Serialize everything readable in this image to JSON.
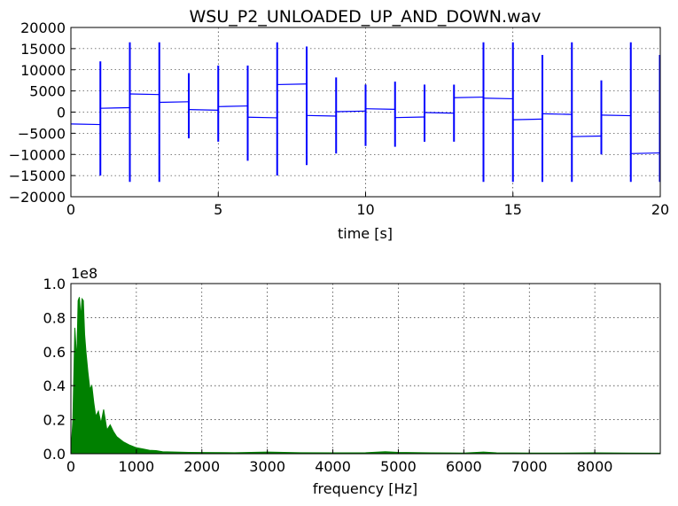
{
  "chart_data": [
    {
      "type": "line",
      "title": "WSU_P2_UNLOADED_UP_AND_DOWN.wav",
      "xlabel": "time [s]",
      "ylabel": "",
      "xlim": [
        0,
        20
      ],
      "ylim": [
        -20000,
        20000
      ],
      "xticks": [
        "0",
        "5",
        "10",
        "15",
        "20"
      ],
      "yticks": [
        "20000",
        "15000",
        "10000",
        "5000",
        "0",
        "−5000",
        "−10000",
        "−15000",
        "−20000"
      ],
      "grid": true,
      "color": "#0000ff",
      "segments": [
        {
          "t0": 0.0,
          "t1": 1.0,
          "level": -2800
        },
        {
          "t0": 1.0,
          "t1": 2.0,
          "level": 900
        },
        {
          "t0": 2.0,
          "t1": 3.0,
          "level": 4300
        },
        {
          "t0": 3.0,
          "t1": 4.0,
          "level": 2300
        },
        {
          "t0": 4.0,
          "t1": 5.0,
          "level": 600
        },
        {
          "t0": 5.0,
          "t1": 6.0,
          "level": 1300
        },
        {
          "t0": 6.0,
          "t1": 7.0,
          "level": -1200
        },
        {
          "t0": 7.0,
          "t1": 8.0,
          "level": 6500
        },
        {
          "t0": 8.0,
          "t1": 9.0,
          "level": -800
        },
        {
          "t0": 9.0,
          "t1": 10.0,
          "level": 100
        },
        {
          "t0": 10.0,
          "t1": 11.0,
          "level": 800
        },
        {
          "t0": 11.0,
          "t1": 12.0,
          "level": -1300
        },
        {
          "t0": 12.0,
          "t1": 13.0,
          "level": -100
        },
        {
          "t0": 13.0,
          "t1": 14.0,
          "level": 3400
        },
        {
          "t0": 14.0,
          "t1": 15.0,
          "level": 3300
        },
        {
          "t0": 15.0,
          "t1": 16.0,
          "level": -1800
        },
        {
          "t0": 16.0,
          "t1": 17.0,
          "level": -400
        },
        {
          "t0": 17.0,
          "t1": 18.0,
          "level": -5800
        },
        {
          "t0": 18.0,
          "t1": 19.0,
          "level": -700
        },
        {
          "t0": 19.0,
          "t1": 20.0,
          "level": -9800
        }
      ],
      "spikes": [
        {
          "t": 1.0,
          "max": 12000,
          "min": -15000
        },
        {
          "t": 2.0,
          "max": 16500,
          "min": -16500
        },
        {
          "t": 3.0,
          "max": 16500,
          "min": -16500
        },
        {
          "t": 4.0,
          "max": 9200,
          "min": -6200
        },
        {
          "t": 5.0,
          "max": 11000,
          "min": -7000
        },
        {
          "t": 6.0,
          "max": 11000,
          "min": -11500
        },
        {
          "t": 7.0,
          "max": 16500,
          "min": -15000
        },
        {
          "t": 8.0,
          "max": 15500,
          "min": -12500
        },
        {
          "t": 9.0,
          "max": 8200,
          "min": -9800
        },
        {
          "t": 10.0,
          "max": 6500,
          "min": -8000
        },
        {
          "t": 11.0,
          "max": 7200,
          "min": -8200
        },
        {
          "t": 12.0,
          "max": 6500,
          "min": -7000
        },
        {
          "t": 13.0,
          "max": 6500,
          "min": -7000
        },
        {
          "t": 14.0,
          "max": 16500,
          "min": -16500
        },
        {
          "t": 15.0,
          "max": 16500,
          "min": -16500
        },
        {
          "t": 16.0,
          "max": 13500,
          "min": -16500
        },
        {
          "t": 17.0,
          "max": 16500,
          "min": -16500
        },
        {
          "t": 18.0,
          "max": 7500,
          "min": -10000
        },
        {
          "t": 19.0,
          "max": 16500,
          "min": -16500
        },
        {
          "t": 20.0,
          "max": 13500,
          "min": -16500
        }
      ]
    },
    {
      "type": "area",
      "title": "",
      "xlabel": "frequency [Hz]",
      "ylabel": "",
      "xlim": [
        0,
        9000
      ],
      "ylim": [
        0,
        1.0
      ],
      "offset_label": "1e8",
      "xticks": [
        "0",
        "1000",
        "2000",
        "3000",
        "4000",
        "5000",
        "6000",
        "7000",
        "8000"
      ],
      "yticks": [
        "1.0",
        "0.8",
        "0.6",
        "0.4",
        "0.2",
        "0.0"
      ],
      "grid": true,
      "color": "#008000",
      "envelope_x": [
        0,
        30,
        60,
        90,
        110,
        130,
        150,
        170,
        190,
        210,
        230,
        260,
        290,
        320,
        350,
        380,
        420,
        460,
        500,
        550,
        600,
        650,
        700,
        800,
        900,
        1000,
        1100,
        1200,
        1300,
        1400,
        1600,
        1800,
        2000,
        2500,
        3000,
        3500,
        4000,
        4500,
        4800,
        5000,
        5500,
        6000,
        6300,
        6500,
        7000,
        7500,
        8000,
        8500,
        9000
      ],
      "envelope_y": [
        0.0,
        0.2,
        0.74,
        0.55,
        0.9,
        0.92,
        0.8,
        0.91,
        0.9,
        0.7,
        0.6,
        0.48,
        0.38,
        0.4,
        0.3,
        0.22,
        0.25,
        0.18,
        0.26,
        0.14,
        0.17,
        0.13,
        0.1,
        0.07,
        0.05,
        0.035,
        0.028,
        0.02,
        0.018,
        0.012,
        0.01,
        0.008,
        0.007,
        0.006,
        0.01,
        0.006,
        0.005,
        0.006,
        0.012,
        0.008,
        0.005,
        0.004,
        0.01,
        0.005,
        0.004,
        0.004,
        0.005,
        0.004,
        0.003
      ]
    }
  ]
}
